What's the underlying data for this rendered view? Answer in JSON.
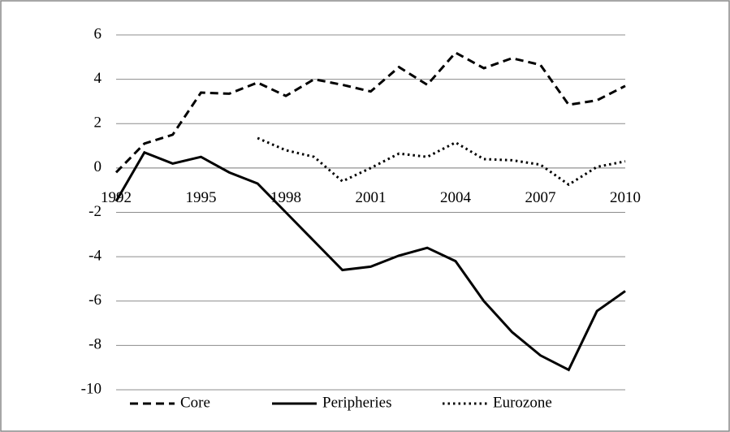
{
  "chart_data": {
    "type": "line",
    "categories": [
      "1992",
      null,
      null,
      "1995",
      null,
      null,
      "1998",
      null,
      null,
      "2001",
      null,
      null,
      "2004",
      null,
      null,
      "2007",
      null,
      null,
      "2010"
    ],
    "series": [
      {
        "name": "Core",
        "color": "#000000",
        "style": "dashed",
        "values": [
          -0.2,
          1.1,
          1.5,
          3.4,
          3.35,
          3.85,
          3.25,
          4.0,
          3.75,
          3.45,
          4.55,
          3.75,
          5.2,
          4.5,
          4.95,
          4.65,
          2.85,
          3.05,
          3.7
        ]
      },
      {
        "name": "Peripheries",
        "color": "#000000",
        "style": "solid",
        "values": [
          -1.5,
          0.7,
          0.2,
          0.5,
          -0.2,
          -0.7,
          -2.0,
          -3.3,
          -4.6,
          -4.45,
          -3.95,
          -3.6,
          -4.2,
          -6.0,
          -7.4,
          -8.45,
          -9.1,
          -6.45,
          -5.55
        ]
      },
      {
        "name": "Eurozone",
        "color": "#000000",
        "style": "dotted",
        "values": [
          null,
          null,
          null,
          null,
          null,
          1.35,
          0.8,
          0.5,
          -0.6,
          0.0,
          0.65,
          0.5,
          1.15,
          0.4,
          0.35,
          0.15,
          -0.75,
          0.05,
          0.3
        ]
      }
    ],
    "ylim": [
      -10,
      6
    ],
    "yticks": [
      -10,
      -8,
      -6,
      -4,
      -2,
      0,
      2,
      4,
      6
    ],
    "grid": true,
    "legend": "bottom"
  }
}
